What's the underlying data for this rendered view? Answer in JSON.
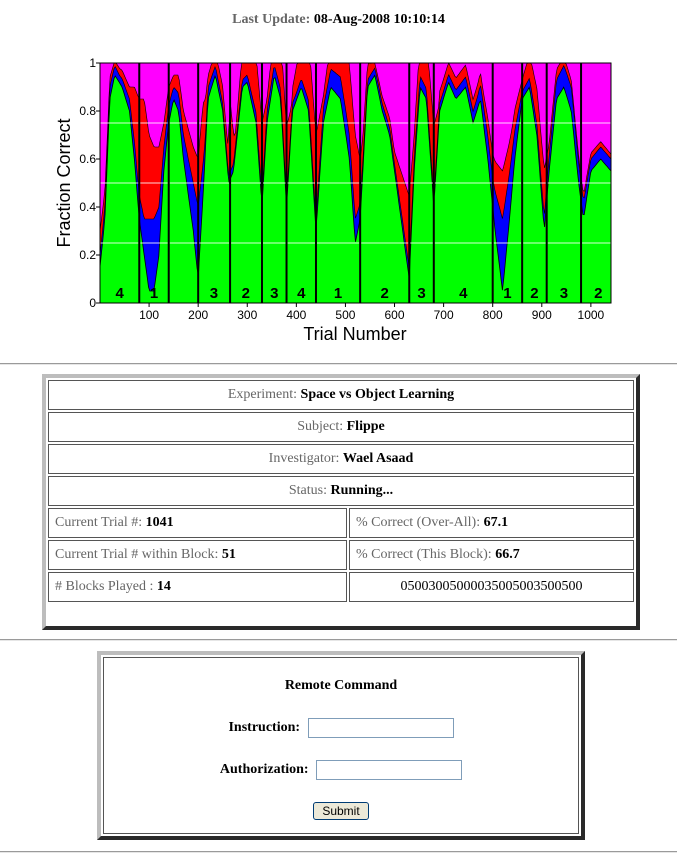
{
  "header": {
    "update_label": "Last Update:",
    "update_value": "08-Aug-2008 10:10:14"
  },
  "chart_data": {
    "type": "area",
    "xlabel": "Trial Number",
    "ylabel": "Fraction Correct",
    "xlim": [
      0,
      1041
    ],
    "ylim": [
      0,
      1
    ],
    "xticks": [
      100,
      200,
      300,
      400,
      500,
      600,
      700,
      800,
      900,
      1000
    ],
    "yticks": [
      0,
      0.2,
      0.4,
      0.6,
      0.8,
      1
    ],
    "ytick_labels": [
      "0",
      "0.2",
      "0.4",
      "0.6",
      "0.8",
      "1"
    ],
    "gridlines_y": [
      0.25,
      0.5,
      0.75
    ],
    "series_colors": {
      "correct": "#00ff00",
      "blue": "#0000ff",
      "red": "#ff0000",
      "magenta": "#ff00ff"
    },
    "block_boundaries": [
      80,
      140,
      200,
      265,
      330,
      380,
      440,
      530,
      630,
      680,
      800,
      860,
      910,
      980
    ],
    "block_labels": [
      {
        "x": 40,
        "label": "4"
      },
      {
        "x": 110,
        "label": "1"
      },
      {
        "x": 232,
        "label": "3"
      },
      {
        "x": 297,
        "label": "2"
      },
      {
        "x": 355,
        "label": "3"
      },
      {
        "x": 410,
        "label": "4"
      },
      {
        "x": 485,
        "label": "1"
      },
      {
        "x": 580,
        "label": "2"
      },
      {
        "x": 655,
        "label": "3"
      },
      {
        "x": 740,
        "label": "4"
      },
      {
        "x": 830,
        "label": "1"
      },
      {
        "x": 885,
        "label": "2"
      },
      {
        "x": 945,
        "label": "3"
      },
      {
        "x": 1015,
        "label": "2"
      }
    ],
    "correct_profile": [
      [
        0,
        0.15
      ],
      [
        10,
        0.35
      ],
      [
        20,
        0.85
      ],
      [
        30,
        0.95
      ],
      [
        45,
        0.9
      ],
      [
        60,
        0.8
      ],
      [
        70,
        0.6
      ],
      [
        80,
        0.35
      ],
      [
        90,
        0.2
      ],
      [
        100,
        0.05
      ],
      [
        110,
        0.05
      ],
      [
        120,
        0.2
      ],
      [
        130,
        0.55
      ],
      [
        140,
        0.75
      ],
      [
        150,
        0.85
      ],
      [
        160,
        0.8
      ],
      [
        170,
        0.6
      ],
      [
        180,
        0.45
      ],
      [
        190,
        0.3
      ],
      [
        200,
        0.1
      ],
      [
        210,
        0.45
      ],
      [
        220,
        0.85
      ],
      [
        235,
        0.95
      ],
      [
        250,
        0.8
      ],
      [
        262,
        0.5
      ],
      [
        272,
        0.55
      ],
      [
        290,
        0.9
      ],
      [
        300,
        0.92
      ],
      [
        318,
        0.75
      ],
      [
        330,
        0.4
      ],
      [
        340,
        0.75
      ],
      [
        355,
        0.95
      ],
      [
        368,
        0.85
      ],
      [
        380,
        0.4
      ],
      [
        392,
        0.8
      ],
      [
        410,
        0.9
      ],
      [
        425,
        0.8
      ],
      [
        440,
        0.3
      ],
      [
        455,
        0.75
      ],
      [
        470,
        0.9
      ],
      [
        490,
        0.85
      ],
      [
        508,
        0.6
      ],
      [
        520,
        0.25
      ],
      [
        530,
        0.35
      ],
      [
        545,
        0.9
      ],
      [
        560,
        0.95
      ],
      [
        575,
        0.8
      ],
      [
        590,
        0.7
      ],
      [
        610,
        0.4
      ],
      [
        630,
        0.1
      ],
      [
        640,
        0.55
      ],
      [
        652,
        0.9
      ],
      [
        665,
        0.85
      ],
      [
        680,
        0.4
      ],
      [
        692,
        0.8
      ],
      [
        710,
        0.92
      ],
      [
        725,
        0.85
      ],
      [
        745,
        0.9
      ],
      [
        760,
        0.75
      ],
      [
        775,
        0.85
      ],
      [
        790,
        0.6
      ],
      [
        805,
        0.3
      ],
      [
        820,
        0.05
      ],
      [
        832,
        0.3
      ],
      [
        845,
        0.6
      ],
      [
        860,
        0.85
      ],
      [
        875,
        0.9
      ],
      [
        890,
        0.7
      ],
      [
        905,
        0.3
      ],
      [
        915,
        0.55
      ],
      [
        930,
        0.85
      ],
      [
        945,
        0.9
      ],
      [
        960,
        0.8
      ],
      [
        975,
        0.5
      ],
      [
        985,
        0.35
      ],
      [
        1000,
        0.55
      ],
      [
        1020,
        0.6
      ],
      [
        1041,
        0.55
      ]
    ],
    "blue_profile": [
      [
        0,
        0.05
      ],
      [
        20,
        0.05
      ],
      [
        40,
        0.03
      ],
      [
        60,
        0.05
      ],
      [
        80,
        0.1
      ],
      [
        90,
        0.15
      ],
      [
        100,
        0.3
      ],
      [
        110,
        0.3
      ],
      [
        120,
        0.2
      ],
      [
        130,
        0.1
      ],
      [
        150,
        0.05
      ],
      [
        170,
        0.1
      ],
      [
        190,
        0.2
      ],
      [
        200,
        0.3
      ],
      [
        215,
        0.05
      ],
      [
        250,
        0.03
      ],
      [
        300,
        0.03
      ],
      [
        330,
        0.05
      ],
      [
        400,
        0.03
      ],
      [
        440,
        0.05
      ],
      [
        500,
        0.1
      ],
      [
        520,
        0.1
      ],
      [
        540,
        0.03
      ],
      [
        600,
        0.03
      ],
      [
        640,
        0.05
      ],
      [
        700,
        0.03
      ],
      [
        770,
        0.05
      ],
      [
        800,
        0.12
      ],
      [
        820,
        0.3
      ],
      [
        840,
        0.15
      ],
      [
        860,
        0.03
      ],
      [
        900,
        0.05
      ],
      [
        930,
        0.08
      ],
      [
        960,
        0.1
      ],
      [
        980,
        0.08
      ],
      [
        1000,
        0.05
      ],
      [
        1041,
        0.05
      ]
    ],
    "red_profile": [
      [
        0,
        0.1
      ],
      [
        15,
        0.05
      ],
      [
        30,
        0.02
      ],
      [
        60,
        0.05
      ],
      [
        80,
        0.4
      ],
      [
        90,
        0.5
      ],
      [
        100,
        0.35
      ],
      [
        110,
        0.3
      ],
      [
        120,
        0.25
      ],
      [
        130,
        0.1
      ],
      [
        150,
        0.05
      ],
      [
        170,
        0.1
      ],
      [
        190,
        0.15
      ],
      [
        200,
        0.2
      ],
      [
        210,
        0.25
      ],
      [
        220,
        0.05
      ],
      [
        260,
        0.08
      ],
      [
        265,
        0.3
      ],
      [
        275,
        0.05
      ],
      [
        330,
        0.3
      ],
      [
        340,
        0.05
      ],
      [
        380,
        0.3
      ],
      [
        390,
        0.05
      ],
      [
        440,
        0.35
      ],
      [
        455,
        0.05
      ],
      [
        520,
        0.35
      ],
      [
        535,
        0.1
      ],
      [
        560,
        0.02
      ],
      [
        600,
        0.05
      ],
      [
        630,
        0.3
      ],
      [
        640,
        0.1
      ],
      [
        680,
        0.3
      ],
      [
        690,
        0.05
      ],
      [
        780,
        0.05
      ],
      [
        800,
        0.1
      ],
      [
        820,
        0.2
      ],
      [
        840,
        0.1
      ],
      [
        860,
        0.05
      ],
      [
        905,
        0.2
      ],
      [
        915,
        0.05
      ],
      [
        960,
        0.03
      ],
      [
        1041,
        0.02
      ]
    ]
  },
  "info": {
    "experiment": {
      "label": "Experiment:",
      "value": "Space vs Object Learning"
    },
    "subject": {
      "label": "Subject:",
      "value": "Flippe"
    },
    "investigator": {
      "label": "Investigator:",
      "value": "Wael Asaad"
    },
    "status": {
      "label": "Status:",
      "value": "Running..."
    },
    "current_trial": {
      "label": "Current Trial #:",
      "value": "1041"
    },
    "pct_overall": {
      "label": "% Correct (Over-All):",
      "value": "67.1"
    },
    "trial_in_block": {
      "label": "Current Trial # within Block:",
      "value": "51"
    },
    "pct_block": {
      "label": "% Correct (This Block):",
      "value": "66.7"
    },
    "blocks_played": {
      "label": "# Blocks Played :",
      "value": "14"
    },
    "code": "05003005000035005003500500"
  },
  "remote": {
    "title": "Remote Command",
    "instruction_label": "Instruction:",
    "instruction_value": "",
    "authorization_label": "Authorization:",
    "authorization_value": "",
    "submit_label": "Submit"
  }
}
